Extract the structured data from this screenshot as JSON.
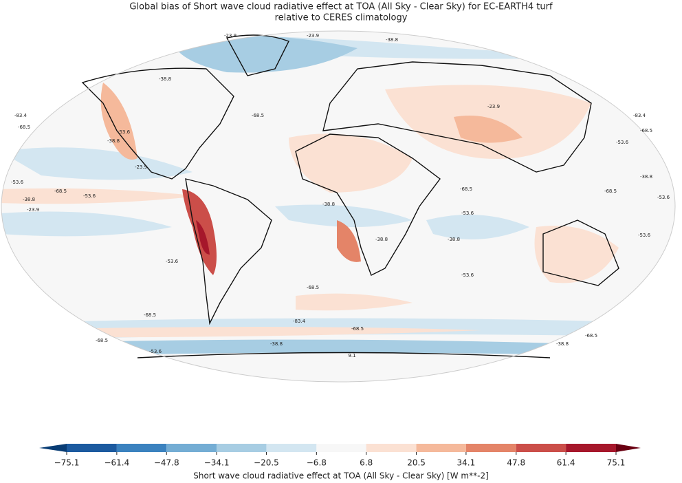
{
  "title": [
    "Global bias of Short wave cloud radiative effect at TOA (All Sky - Clear Sky) for EC-EARTH4 turf",
    "relative to CERES climatology"
  ],
  "map": {
    "contour_labels": [
      "-23.9",
      "-23.9",
      "-38.8",
      "-38.8",
      "-83.4",
      "-68.5",
      "-53.6",
      "-38.8",
      "-68.5",
      "-23.9",
      "-53.6",
      "-68.5",
      "-53.6",
      "-38.8",
      "-23.9",
      "-38.8",
      "-68.5",
      "-53.6",
      "-38.8",
      "-38.8",
      "-53.6",
      "-68.5",
      "-83.4",
      "-68.5",
      "-68.5",
      "-53.6",
      "-38.8",
      "9.1",
      "-83.4",
      "-68.5",
      "-53.6",
      "-38.8",
      "-68.5",
      "-53.6",
      "-23.9",
      "-68.5",
      "-38.8",
      "-53.6",
      "-68.5",
      "-53.6"
    ]
  },
  "colorbar": {
    "label": "Short wave cloud radiative effect at TOA (All Sky - Clear Sky) [W m**-2]",
    "ticks": [
      {
        "value": -75.1,
        "label": "−75.1"
      },
      {
        "value": -61.4,
        "label": "−61.4"
      },
      {
        "value": -47.8,
        "label": "−47.8"
      },
      {
        "value": -34.1,
        "label": "−34.1"
      },
      {
        "value": -20.5,
        "label": "−20.5"
      },
      {
        "value": -6.8,
        "label": "−6.8"
      },
      6.8,
      20.5,
      34.1,
      47.8,
      61.4,
      75.1
    ],
    "colors": [
      "#1c5a9f",
      "#3b82bf",
      "#74add4",
      "#a7cde3",
      "#d3e6f1",
      "#f7f7f7",
      "#fbe1d3",
      "#f5b99b",
      "#e48468",
      "#cb4e49",
      "#a6172b"
    ],
    "extend_colors": [
      "#083c74",
      "#6a0012"
    ]
  }
}
